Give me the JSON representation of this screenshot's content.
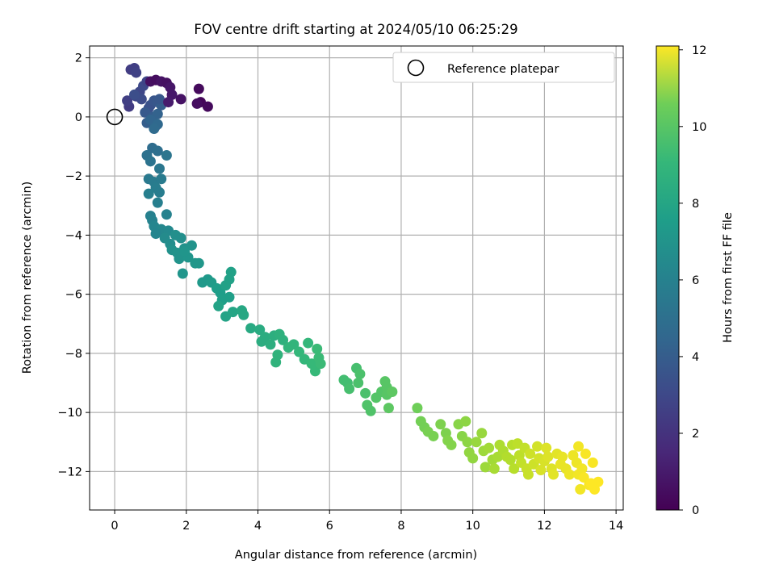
{
  "chart_data": {
    "type": "scatter",
    "title": "FOV centre drift starting at 2024/05/10 06:25:29",
    "xlabel": "Angular distance from reference (arcmin)",
    "ylabel": "Rotation from reference (arcmin)",
    "xlim": [
      -0.7,
      14.2
    ],
    "ylim": [
      -13.3,
      2.4
    ],
    "x_ticks": [
      0,
      2,
      4,
      6,
      8,
      10,
      12,
      14
    ],
    "y_ticks": [
      2,
      0,
      -2,
      -4,
      -6,
      -8,
      -10,
      -12
    ],
    "grid": true,
    "legend": {
      "placement": "top-right",
      "entries": [
        "Reference platepar"
      ]
    },
    "reference_point": {
      "label": "Reference platepar",
      "x": 0,
      "y": 0
    },
    "colorbar": {
      "label": "Hours from first FF file",
      "range": [
        0,
        12.1
      ],
      "ticks": [
        0,
        2,
        4,
        6,
        8,
        10,
        12
      ],
      "colormap": "viridis"
    },
    "colors": {
      "grid": "#b0b0b0",
      "axes": "#000000",
      "ref_edge": "#000000"
    },
    "series": [
      {
        "points": [
          [
            0.45,
            1.6,
            2.2
          ],
          [
            0.55,
            1.65,
            2.3
          ],
          [
            0.6,
            1.5,
            2.4
          ],
          [
            0.4,
            0.35,
            2.1
          ],
          [
            0.35,
            0.55,
            2.3
          ],
          [
            0.6,
            0.7,
            2.5
          ],
          [
            0.7,
            0.85,
            2.6
          ],
          [
            0.8,
            1.05,
            2.7
          ],
          [
            0.9,
            1.2,
            2.5
          ],
          [
            0.75,
            0.6,
            2.8
          ],
          [
            0.55,
            0.75,
            2.9
          ],
          [
            0.95,
            0.3,
            3.0
          ],
          [
            1.0,
            0.4,
            3.1
          ],
          [
            1.1,
            0.55,
            3.2
          ],
          [
            1.2,
            0.5,
            3.3
          ],
          [
            0.85,
            0.15,
            3.4
          ],
          [
            1.05,
            0.0,
            3.5
          ],
          [
            0.9,
            -0.2,
            3.6
          ],
          [
            1.15,
            -0.3,
            3.7
          ],
          [
            1.2,
            0.1,
            3.8
          ],
          [
            1.3,
            0.4,
            3.6
          ],
          [
            1.0,
            -0.1,
            3.9
          ],
          [
            1.25,
            0.6,
            3.3
          ],
          [
            1.0,
            1.2,
            0.5
          ],
          [
            1.15,
            1.25,
            0.4
          ],
          [
            1.3,
            1.2,
            0.6
          ],
          [
            1.45,
            1.15,
            0.5
          ],
          [
            1.55,
            1.0,
            0.7
          ],
          [
            1.6,
            0.75,
            0.8
          ],
          [
            1.5,
            0.5,
            0.9
          ],
          [
            1.85,
            0.6,
            0.6
          ],
          [
            2.35,
            0.95,
            0.3
          ],
          [
            2.4,
            0.5,
            0.2
          ],
          [
            2.6,
            0.35,
            0.3
          ],
          [
            2.3,
            0.45,
            0.4
          ],
          [
            1.2,
            -0.25,
            4.1
          ],
          [
            1.1,
            -0.4,
            4.2
          ],
          [
            1.05,
            -1.05,
            4.3
          ],
          [
            1.2,
            -1.15,
            4.4
          ],
          [
            0.9,
            -1.3,
            4.5
          ],
          [
            1.0,
            -1.5,
            4.6
          ],
          [
            1.45,
            -1.3,
            4.7
          ],
          [
            1.25,
            -1.75,
            4.8
          ],
          [
            0.95,
            -2.1,
            4.9
          ],
          [
            1.1,
            -2.2,
            5.0
          ],
          [
            1.3,
            -2.1,
            5.0
          ],
          [
            1.15,
            -2.4,
            5.1
          ],
          [
            0.95,
            -2.6,
            5.2
          ],
          [
            1.25,
            -2.55,
            5.1
          ],
          [
            1.2,
            -2.9,
            5.2
          ],
          [
            1.0,
            -3.35,
            5.3
          ],
          [
            1.05,
            -3.5,
            5.4
          ],
          [
            1.45,
            -3.3,
            5.4
          ],
          [
            1.1,
            -3.7,
            5.5
          ],
          [
            1.3,
            -3.8,
            5.6
          ],
          [
            1.15,
            -3.95,
            5.5
          ],
          [
            1.5,
            -3.85,
            5.7
          ],
          [
            1.4,
            -4.1,
            5.8
          ],
          [
            1.55,
            -4.3,
            5.9
          ],
          [
            1.7,
            -4.0,
            6.0
          ],
          [
            1.85,
            -4.1,
            6.0
          ],
          [
            1.6,
            -4.5,
            6.1
          ],
          [
            1.75,
            -4.6,
            6.2
          ],
          [
            1.95,
            -4.45,
            6.1
          ],
          [
            1.8,
            -4.8,
            6.2
          ],
          [
            2.05,
            -4.75,
            6.3
          ],
          [
            2.15,
            -4.35,
            6.2
          ],
          [
            1.9,
            -5.3,
            6.3
          ],
          [
            2.25,
            -4.95,
            6.4
          ],
          [
            2.35,
            -4.95,
            6.4
          ],
          [
            1.95,
            -4.55,
            6.3
          ],
          [
            2.45,
            -5.6,
            6.5
          ],
          [
            2.6,
            -5.5,
            6.5
          ],
          [
            2.7,
            -5.6,
            6.6
          ],
          [
            2.85,
            -5.8,
            6.7
          ],
          [
            2.95,
            -5.95,
            6.7
          ],
          [
            3.0,
            -6.2,
            6.8
          ],
          [
            3.2,
            -6.1,
            6.8
          ],
          [
            3.1,
            -5.7,
            6.9
          ],
          [
            3.2,
            -5.5,
            6.9
          ],
          [
            3.25,
            -5.25,
            6.9
          ],
          [
            2.9,
            -6.4,
            7.0
          ],
          [
            3.1,
            -6.75,
            7.0
          ],
          [
            3.3,
            -6.6,
            7.1
          ],
          [
            3.55,
            -6.55,
            7.2
          ],
          [
            3.6,
            -6.7,
            7.2
          ],
          [
            3.8,
            -7.15,
            7.3
          ],
          [
            4.05,
            -7.2,
            7.4
          ],
          [
            4.2,
            -7.45,
            7.5
          ],
          [
            4.1,
            -7.6,
            7.5
          ],
          [
            4.35,
            -7.7,
            7.6
          ],
          [
            4.45,
            -7.4,
            7.6
          ],
          [
            4.6,
            -7.35,
            7.7
          ],
          [
            4.7,
            -7.55,
            7.7
          ],
          [
            4.55,
            -8.05,
            7.8
          ],
          [
            4.5,
            -8.3,
            7.8
          ],
          [
            4.85,
            -7.8,
            7.9
          ],
          [
            5.0,
            -7.7,
            7.9
          ],
          [
            5.15,
            -7.95,
            8.0
          ],
          [
            5.3,
            -8.2,
            8.0
          ],
          [
            5.4,
            -7.65,
            8.0
          ],
          [
            5.5,
            -8.35,
            8.1
          ],
          [
            5.6,
            -8.6,
            8.1
          ],
          [
            5.65,
            -7.85,
            8.2
          ],
          [
            5.7,
            -8.15,
            8.2
          ],
          [
            5.75,
            -8.35,
            8.2
          ],
          [
            6.4,
            -8.9,
            8.4
          ],
          [
            6.5,
            -9.0,
            8.4
          ],
          [
            6.55,
            -9.2,
            8.5
          ],
          [
            6.75,
            -8.5,
            8.5
          ],
          [
            6.85,
            -8.7,
            8.6
          ],
          [
            6.8,
            -9.0,
            8.6
          ],
          [
            7.0,
            -9.35,
            8.6
          ],
          [
            7.05,
            -9.75,
            8.7
          ],
          [
            7.15,
            -9.95,
            8.7
          ],
          [
            7.3,
            -9.5,
            8.8
          ],
          [
            7.45,
            -9.3,
            8.8
          ],
          [
            7.6,
            -9.15,
            8.9
          ],
          [
            7.6,
            -9.4,
            8.9
          ],
          [
            7.55,
            -8.95,
            8.9
          ],
          [
            7.75,
            -9.3,
            9.0
          ],
          [
            7.65,
            -9.85,
            9.0
          ],
          [
            8.45,
            -9.85,
            9.4
          ],
          [
            8.55,
            -10.3,
            9.5
          ],
          [
            8.65,
            -10.5,
            9.5
          ],
          [
            8.75,
            -10.65,
            9.6
          ],
          [
            8.9,
            -10.8,
            9.6
          ],
          [
            9.1,
            -10.4,
            9.7
          ],
          [
            9.25,
            -10.7,
            9.7
          ],
          [
            9.3,
            -10.95,
            9.8
          ],
          [
            9.4,
            -11.1,
            9.8
          ],
          [
            9.6,
            -10.4,
            9.9
          ],
          [
            9.7,
            -10.8,
            9.9
          ],
          [
            9.8,
            -10.3,
            10.0
          ],
          [
            9.85,
            -11.0,
            10.0
          ],
          [
            9.9,
            -11.35,
            10.1
          ],
          [
            10.0,
            -11.55,
            10.1
          ],
          [
            10.1,
            -11.0,
            10.2
          ],
          [
            10.25,
            -10.7,
            10.2
          ],
          [
            10.3,
            -11.3,
            10.3
          ],
          [
            10.35,
            -11.85,
            10.3
          ],
          [
            10.45,
            -11.2,
            10.4
          ],
          [
            10.55,
            -11.6,
            10.4
          ],
          [
            10.6,
            -11.9,
            10.5
          ],
          [
            10.7,
            -11.5,
            10.5
          ],
          [
            10.75,
            -11.1,
            10.6
          ],
          [
            10.85,
            -11.3,
            10.6
          ],
          [
            10.95,
            -11.5,
            10.7
          ],
          [
            11.05,
            -11.6,
            10.7
          ],
          [
            11.1,
            -11.1,
            10.8
          ],
          [
            11.15,
            -11.9,
            10.8
          ],
          [
            11.25,
            -11.05,
            10.9
          ],
          [
            11.3,
            -11.45,
            10.9
          ],
          [
            11.35,
            -11.7,
            11.0
          ],
          [
            11.45,
            -11.2,
            11.0
          ],
          [
            11.5,
            -11.9,
            11.1
          ],
          [
            11.55,
            -12.1,
            11.1
          ],
          [
            11.6,
            -11.4,
            11.2
          ],
          [
            11.7,
            -11.75,
            11.2
          ],
          [
            11.8,
            -11.15,
            11.3
          ],
          [
            11.85,
            -11.55,
            11.3
          ],
          [
            11.9,
            -11.95,
            11.4
          ],
          [
            12.0,
            -11.65,
            11.4
          ],
          [
            12.05,
            -11.2,
            11.5
          ],
          [
            12.1,
            -11.5,
            11.5
          ],
          [
            12.2,
            -11.9,
            11.5
          ],
          [
            12.25,
            -12.1,
            11.6
          ],
          [
            12.35,
            -11.4,
            11.6
          ],
          [
            12.45,
            -11.75,
            11.7
          ],
          [
            12.5,
            -11.5,
            11.7
          ],
          [
            12.6,
            -11.9,
            11.7
          ],
          [
            12.7,
            -12.1,
            11.8
          ],
          [
            12.8,
            -11.45,
            11.8
          ],
          [
            12.9,
            -11.7,
            11.8
          ],
          [
            12.95,
            -12.1,
            11.9
          ],
          [
            13.0,
            -12.6,
            11.9
          ],
          [
            13.05,
            -11.9,
            11.9
          ],
          [
            13.1,
            -12.2,
            12.0
          ],
          [
            13.15,
            -11.4,
            12.0
          ],
          [
            13.25,
            -12.45,
            12.0
          ],
          [
            13.35,
            -11.7,
            12.0
          ],
          [
            13.4,
            -12.6,
            12.1
          ],
          [
            13.5,
            -12.35,
            12.1
          ],
          [
            12.95,
            -11.15,
            11.9
          ],
          [
            13.3,
            -12.4,
            12.1
          ]
        ]
      }
    ]
  }
}
